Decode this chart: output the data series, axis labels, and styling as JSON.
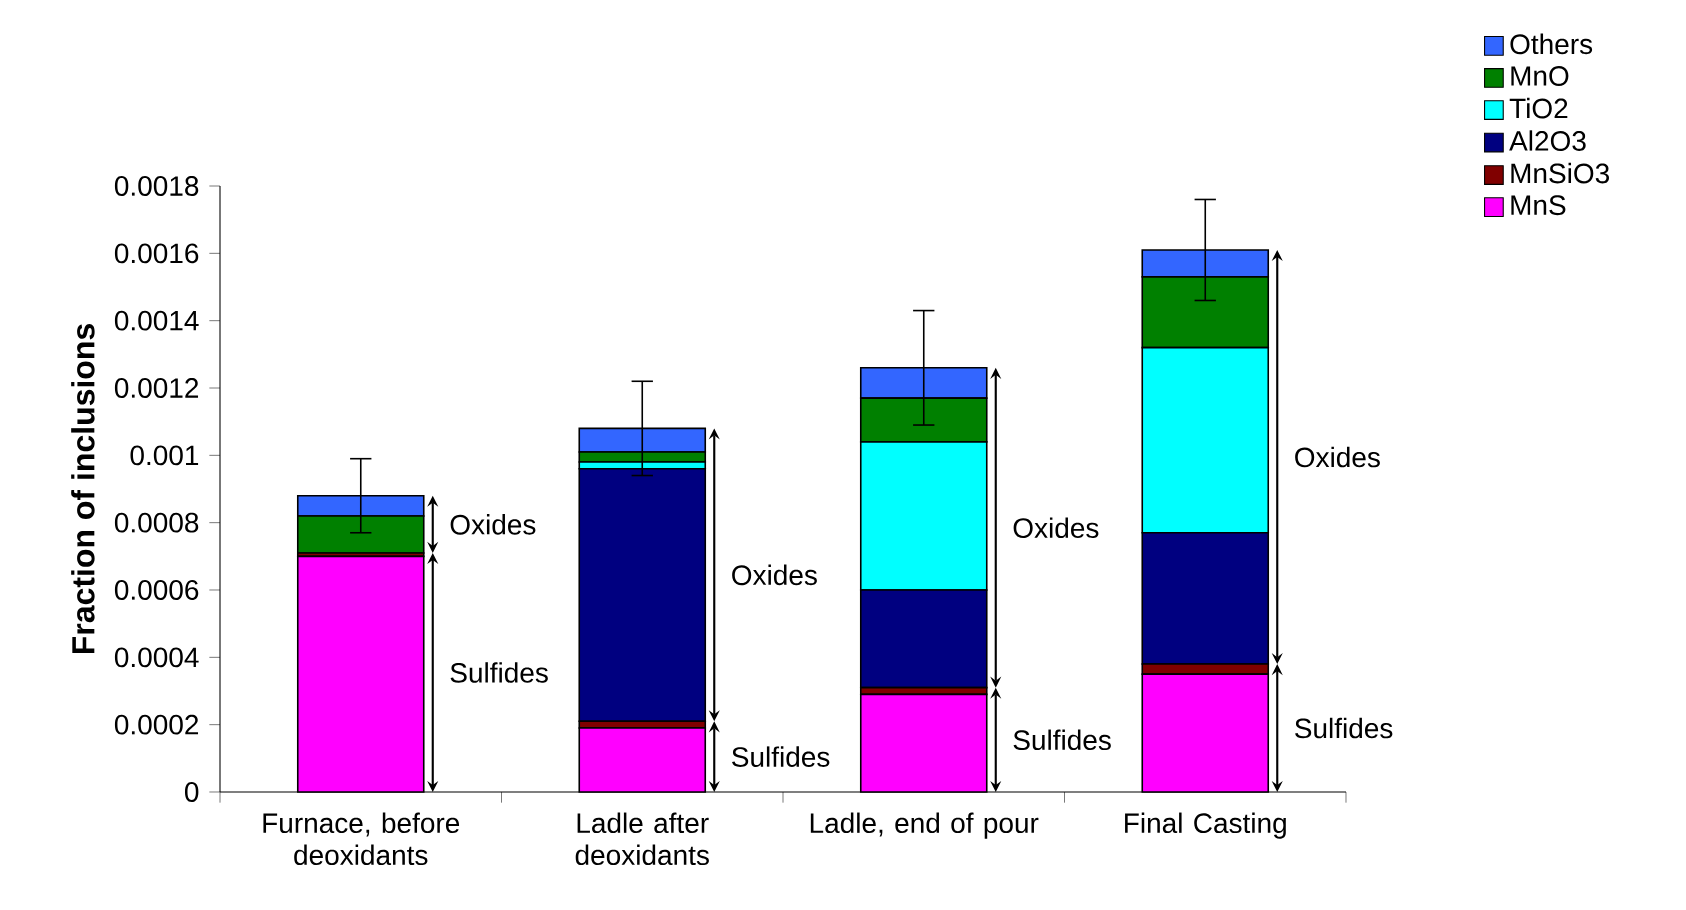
{
  "chart_data": {
    "type": "bar",
    "stacked": true,
    "ylabel": "Fraction of inclusions",
    "categories": [
      "Furnace, before deoxidants",
      "Ladle after deoxidants",
      "Ladle, end of pour",
      "Final Casting"
    ],
    "series": [
      {
        "name": "MnS",
        "color": "#ff00ff",
        "values": [
          0.0007,
          0.00019,
          0.00029,
          0.00035
        ]
      },
      {
        "name": "MnSiO3",
        "color": "#800000",
        "values": [
          1e-05,
          2e-05,
          2e-05,
          3e-05
        ]
      },
      {
        "name": "Al2O3",
        "color": "#000080",
        "values": [
          0,
          0.00075,
          0.00029,
          0.00039
        ]
      },
      {
        "name": "TiO2",
        "color": "#00ffff",
        "values": [
          0,
          2e-05,
          0.00044,
          0.00055
        ]
      },
      {
        "name": "MnO",
        "color": "#008000",
        "values": [
          0.00011,
          3e-05,
          0.00013,
          0.00021
        ]
      },
      {
        "name": "Others",
        "color": "#3366ff",
        "values": [
          6e-05,
          7e-05,
          9e-05,
          8e-05
        ],
        "errors": [
          0.00011,
          0.00014,
          0.00017,
          0.00015
        ]
      }
    ],
    "ylim": [
      0,
      0.0018
    ],
    "yticks": [
      0,
      0.0002,
      0.0004,
      0.0006,
      0.0008,
      0.001,
      0.0012,
      0.0014,
      0.0016,
      0.0018
    ],
    "legend": "top right",
    "annotations": [
      "Oxides",
      "Sulfides",
      "Oxides",
      "Sulfides",
      "Oxides",
      "Sulfides",
      "Oxides",
      "Sulfides"
    ]
  }
}
